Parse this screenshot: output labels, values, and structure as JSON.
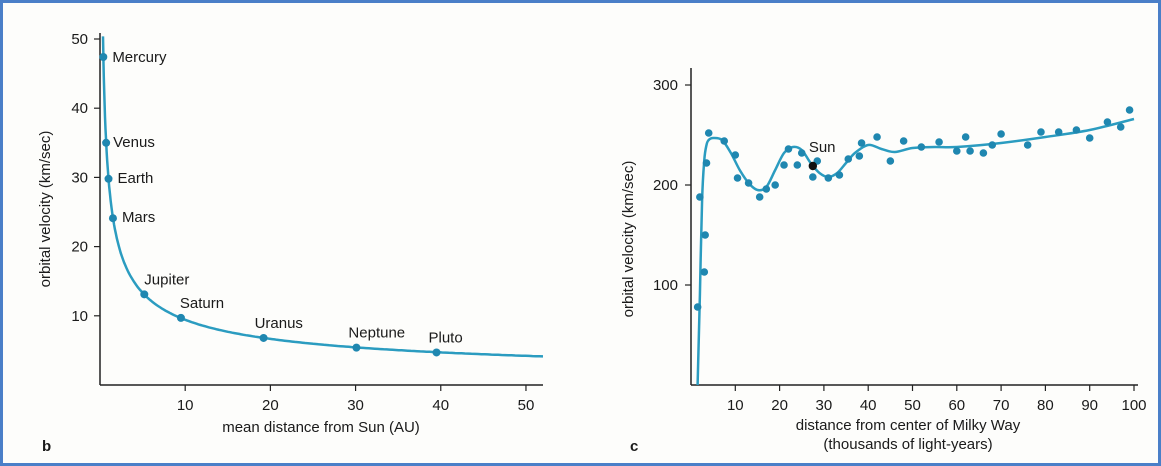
{
  "colors": {
    "curve": "#2b9cc0",
    "point": "#1f87b0",
    "highlight": "#111111",
    "frame": "#4a7fc8",
    "axis": "#222222"
  },
  "panels": {
    "b": {
      "letter": "b"
    },
    "c": {
      "letter": "c"
    }
  },
  "chart_data": [
    {
      "id": "b",
      "type": "line",
      "title": "",
      "xlabel": "mean distance from Sun (AU)",
      "ylabel": "orbital velocity (km/sec)",
      "xlim": [
        0,
        52
      ],
      "ylim": [
        0,
        50
      ],
      "xticks": [
        10,
        20,
        30,
        40,
        50
      ],
      "yticks": [
        10,
        20,
        30,
        40,
        50
      ],
      "points": [
        {
          "name": "Mercury",
          "x": 0.39,
          "y": 47.4
        },
        {
          "name": "Venus",
          "x": 0.72,
          "y": 35.0
        },
        {
          "name": "Earth",
          "x": 1.0,
          "y": 29.8
        },
        {
          "name": "Mars",
          "x": 1.52,
          "y": 24.1
        },
        {
          "name": "Jupiter",
          "x": 5.2,
          "y": 13.1
        },
        {
          "name": "Saturn",
          "x": 9.5,
          "y": 9.7
        },
        {
          "name": "Uranus",
          "x": 19.2,
          "y": 6.8
        },
        {
          "name": "Neptune",
          "x": 30.1,
          "y": 5.4
        },
        {
          "name": "Pluto",
          "x": 39.5,
          "y": 4.7
        }
      ],
      "curve": {
        "x": [
          0.35,
          0.5,
          0.7,
          1,
          1.5,
          2,
          3,
          4,
          5,
          7,
          9,
          12,
          15,
          20,
          25,
          30,
          35,
          40,
          45,
          50,
          52
        ],
        "y": [
          50.4,
          42.1,
          35.6,
          29.8,
          24.3,
          21.1,
          17.2,
          14.9,
          13.3,
          11.3,
          9.9,
          8.6,
          7.7,
          6.7,
          6.0,
          5.4,
          5.0,
          4.7,
          4.4,
          4.2,
          4.1
        ]
      }
    },
    {
      "id": "c",
      "type": "scatter",
      "title": "",
      "xlabel": "distance from center of Milky Way",
      "xlabel2": "(thousands of light-years)",
      "ylabel": "orbital velocity (km/sec)",
      "xlim": [
        0,
        100
      ],
      "ylim": [
        0,
        310
      ],
      "xticks": [
        10,
        20,
        30,
        40,
        50,
        60,
        70,
        80,
        90,
        100
      ],
      "yticks": [
        100,
        200,
        300
      ],
      "sun": {
        "name": "Sun",
        "x": 27.5,
        "y": 219
      },
      "points": [
        {
          "x": 1.5,
          "y": 78
        },
        {
          "x": 2,
          "y": 188
        },
        {
          "x": 3,
          "y": 113
        },
        {
          "x": 3.2,
          "y": 150
        },
        {
          "x": 3.5,
          "y": 222
        },
        {
          "x": 4,
          "y": 252
        },
        {
          "x": 7.5,
          "y": 244
        },
        {
          "x": 10,
          "y": 230
        },
        {
          "x": 10.5,
          "y": 207
        },
        {
          "x": 13,
          "y": 202
        },
        {
          "x": 15.5,
          "y": 188
        },
        {
          "x": 17,
          "y": 196
        },
        {
          "x": 19,
          "y": 200
        },
        {
          "x": 21,
          "y": 220
        },
        {
          "x": 22,
          "y": 236
        },
        {
          "x": 24,
          "y": 220
        },
        {
          "x": 25,
          "y": 232
        },
        {
          "x": 27.5,
          "y": 208
        },
        {
          "x": 28.5,
          "y": 224
        },
        {
          "x": 31,
          "y": 207
        },
        {
          "x": 33.5,
          "y": 210
        },
        {
          "x": 35.5,
          "y": 226
        },
        {
          "x": 38.5,
          "y": 242
        },
        {
          "x": 38,
          "y": 229
        },
        {
          "x": 42,
          "y": 248
        },
        {
          "x": 45,
          "y": 224
        },
        {
          "x": 48,
          "y": 244
        },
        {
          "x": 52,
          "y": 238
        },
        {
          "x": 56,
          "y": 243
        },
        {
          "x": 60,
          "y": 234
        },
        {
          "x": 62,
          "y": 248
        },
        {
          "x": 63,
          "y": 234
        },
        {
          "x": 66,
          "y": 232
        },
        {
          "x": 68,
          "y": 240
        },
        {
          "x": 70,
          "y": 251
        },
        {
          "x": 76,
          "y": 240
        },
        {
          "x": 79,
          "y": 253
        },
        {
          "x": 83,
          "y": 253
        },
        {
          "x": 87,
          "y": 255
        },
        {
          "x": 90,
          "y": 247
        },
        {
          "x": 94,
          "y": 263
        },
        {
          "x": 97,
          "y": 258
        },
        {
          "x": 99,
          "y": 275
        }
      ],
      "curve": {
        "x": [
          1.5,
          2,
          2.5,
          3,
          3.5,
          4,
          5,
          7,
          9,
          11,
          13,
          15,
          17,
          19,
          21,
          23,
          25,
          27,
          29,
          31,
          33,
          35,
          37,
          40,
          43,
          46,
          50,
          55,
          60,
          70,
          80,
          90,
          100
        ],
        "y": [
          0,
          90,
          185,
          225,
          240,
          245,
          247,
          245,
          232,
          215,
          202,
          195,
          198,
          215,
          232,
          238,
          235,
          222,
          212,
          208,
          212,
          222,
          232,
          240,
          236,
          233,
          237,
          238,
          238,
          242,
          248,
          255,
          266
        ]
      }
    }
  ]
}
